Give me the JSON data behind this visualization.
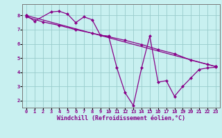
{
  "title": "",
  "xlabel": "Windchill (Refroidissement éolien,°C)",
  "ylabel": "",
  "bg_color": "#c8f0f0",
  "line_color": "#880088",
  "grid_color": "#99cccc",
  "xlim": [
    -0.5,
    23.5
  ],
  "ylim": [
    1.5,
    8.8
  ],
  "xticks": [
    0,
    1,
    2,
    3,
    4,
    5,
    6,
    7,
    8,
    9,
    10,
    11,
    12,
    13,
    14,
    15,
    16,
    17,
    18,
    19,
    20,
    21,
    22,
    23
  ],
  "yticks": [
    2,
    3,
    4,
    5,
    6,
    7,
    8
  ],
  "line1_x": [
    0,
    1,
    3,
    4,
    5,
    6,
    7,
    8,
    9,
    10,
    11,
    12,
    13,
    14,
    15,
    16,
    17,
    18,
    19,
    20,
    21,
    22,
    23
  ],
  "line1_y": [
    8.0,
    7.6,
    8.25,
    8.3,
    8.1,
    7.5,
    7.9,
    7.7,
    6.6,
    6.55,
    4.3,
    2.55,
    1.65,
    4.3,
    6.55,
    3.3,
    3.4,
    2.3,
    3.0,
    3.6,
    4.2,
    4.3,
    4.35
  ],
  "line2_x": [
    0,
    2,
    4,
    6,
    8,
    10,
    12,
    14,
    16,
    18,
    20,
    22,
    23
  ],
  "line2_y": [
    7.9,
    7.55,
    7.3,
    7.0,
    6.75,
    6.5,
    6.25,
    5.95,
    5.6,
    5.3,
    4.85,
    4.55,
    4.4
  ],
  "line3_x": [
    0,
    23
  ],
  "line3_y": [
    8.0,
    4.4
  ],
  "marker_size": 2.2,
  "line_width": 0.9,
  "tick_fontsize": 5.0,
  "xlabel_fontsize": 6.0
}
